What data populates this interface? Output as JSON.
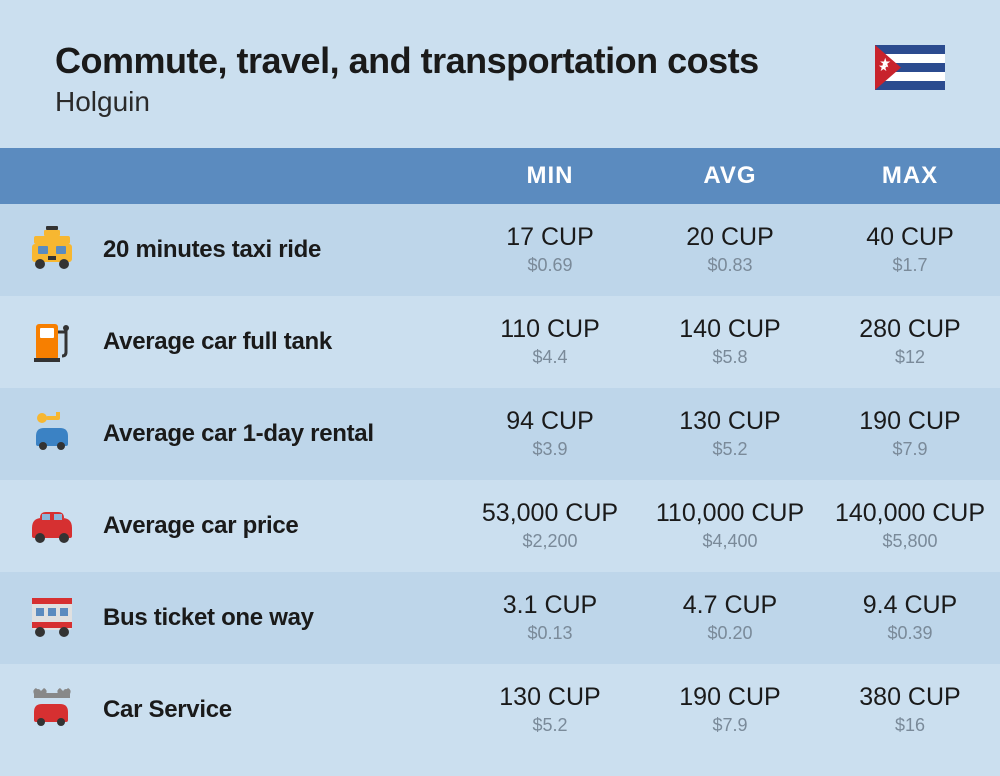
{
  "header": {
    "title": "Commute, travel, and transportation costs",
    "subtitle": "Holguin"
  },
  "columns": [
    "MIN",
    "AVG",
    "MAX"
  ],
  "rows": [
    {
      "icon": "taxi",
      "label": "20 minutes taxi ride",
      "min_primary": "17 CUP",
      "min_secondary": "$0.69",
      "avg_primary": "20 CUP",
      "avg_secondary": "$0.83",
      "max_primary": "40 CUP",
      "max_secondary": "$1.7"
    },
    {
      "icon": "fuel",
      "label": "Average car full tank",
      "min_primary": "110 CUP",
      "min_secondary": "$4.4",
      "avg_primary": "140 CUP",
      "avg_secondary": "$5.8",
      "max_primary": "280 CUP",
      "max_secondary": "$12"
    },
    {
      "icon": "rental",
      "label": "Average car 1-day rental",
      "min_primary": "94 CUP",
      "min_secondary": "$3.9",
      "avg_primary": "130 CUP",
      "avg_secondary": "$5.2",
      "max_primary": "190 CUP",
      "max_secondary": "$7.9"
    },
    {
      "icon": "car",
      "label": "Average car price",
      "min_primary": "53,000 CUP",
      "min_secondary": "$2,200",
      "avg_primary": "110,000 CUP",
      "avg_secondary": "$4,400",
      "max_primary": "140,000 CUP",
      "max_secondary": "$5,800"
    },
    {
      "icon": "bus",
      "label": "Bus ticket one way",
      "min_primary": "3.1 CUP",
      "min_secondary": "$0.13",
      "avg_primary": "4.7 CUP",
      "avg_secondary": "$0.20",
      "max_primary": "9.4 CUP",
      "max_secondary": "$0.39"
    },
    {
      "icon": "service",
      "label": "Car Service",
      "min_primary": "130 CUP",
      "min_secondary": "$5.2",
      "avg_primary": "190 CUP",
      "avg_secondary": "$7.9",
      "max_primary": "380 CUP",
      "max_secondary": "$16"
    }
  ],
  "colors": {
    "header_bg": "#5b8bbf",
    "row_odd": "#bed6ea",
    "row_even": "#cbdfef",
    "page_bg": "#cbdfef",
    "text_primary": "#1a1a1a",
    "text_secondary": "#7a8a99"
  }
}
